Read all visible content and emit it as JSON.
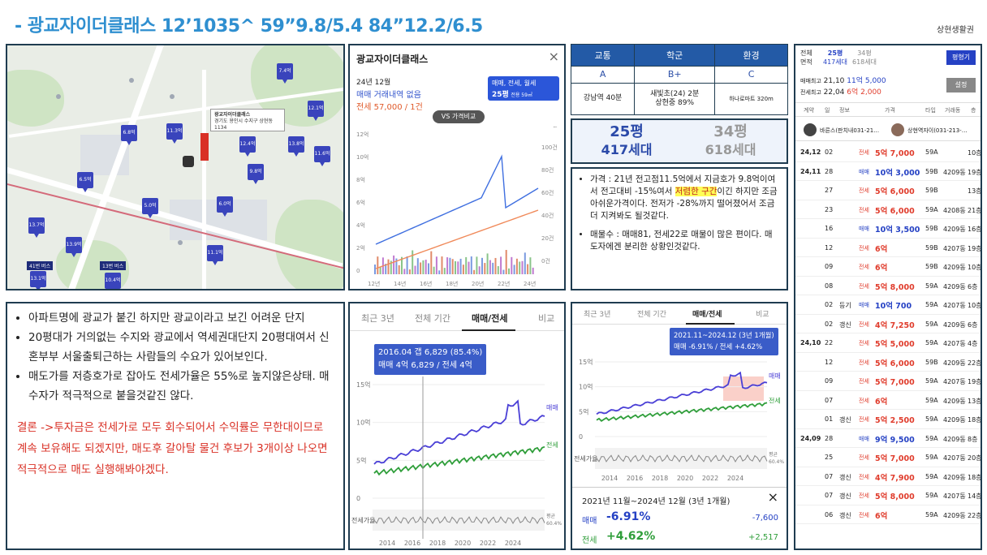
{
  "header": {
    "title": "- 광교자이더클래스 12’1035^ 59”9.8/5.4 84”12.2/6.5",
    "corner_label": "상현생활권"
  },
  "map": {
    "popup_line1": "광교자이더클래스",
    "popup_line2": "경기도 용인시 수지구 상현동 1134",
    "bus_labels": [
      "41번 버스",
      "13번 버스"
    ],
    "markers": [
      "7.4억",
      "12.1억",
      "6.8억",
      "11.3억",
      "12.4억",
      "13.8억",
      "11.6억",
      "9.8억",
      "5.0억",
      "6.5억",
      "13.7억",
      "13.9억",
      "11.1억",
      "13.1억",
      "10.4억",
      "6.0억"
    ]
  },
  "naver": {
    "title": "광교자이더클래스",
    "date": "24년 12월",
    "trade_status": "매매 거래내역 없음",
    "jeonse": "전세 57,000 / 1건",
    "filter_line1": "매매, 전세, 월세",
    "filter_line2": "25평",
    "filter_line3": "전용 59㎡",
    "vs_button": "VS 가격비교",
    "y_ticks": [
      "12억",
      "10억",
      "8억",
      "6억",
      "4억",
      "2억",
      "0"
    ],
    "y2_ticks": [
      "120건",
      "100건",
      "80건",
      "60건",
      "40건",
      "20건",
      "0건"
    ],
    "x_ticks": [
      "12년",
      "14년",
      "16년",
      "18년",
      "20년",
      "22년",
      "24년"
    ]
  },
  "info_table": {
    "headers": [
      "교통",
      "학군",
      "환경"
    ],
    "grades": [
      "A",
      "B+",
      "C"
    ],
    "transport": "강남역 40분",
    "school_line1": "새빛초(24) 2분",
    "school_line2": "상현중 89%",
    "environment": "하나로마트 320m"
  },
  "pyung": {
    "left_size": "25평",
    "left_units": "417세대",
    "right_size": "34평",
    "right_units": "618세대"
  },
  "analysis": {
    "price_prefix": "가격 : 21년 전고점11.5억에서 지금호가 9.8억이여서 전고대비 -15%여서 ",
    "price_highlight": "저렴한 구간",
    "price_suffix": "이긴 하지만 조금 아쉬운가격이다. 전저가 -28%까지 떨어졌어서 조금 더 지켜봐도 될것같다.",
    "listings": "매물수 : 매매81, 전세22로 매물이 많은 편이다. 매도자에겐 분리한 상황인것같다."
  },
  "summary": {
    "bullet1": "아파트명에 광교가 붙긴 하지만 광교이라고 보긴 어려운 단지",
    "bullet2": "20평대가 거의없는 수지와 광교에서 역세권대단지 20평대여서 신혼부부 서울출퇴근하는 사람들의 수요가 있어보인다.",
    "bullet3": "매도가를 저층호가로 잡아도 전세가율은 55%로 높지않은상태. 매수자가 적극적으로 붙을것같진 않다.",
    "conclusion": "결론 ->투자금은 전세가로 모두 회수되어서 수익률은 무한대이므로 계속 보유해도 되겠지만, 매도후 갈아탈 물건 후보가 3개이상 나오면 적극적으로 매도 실행해봐야겠다."
  },
  "chart1": {
    "tabs": [
      "최근 3년",
      "전체 기간",
      "매매/전세",
      "비교"
    ],
    "tooltip_line1": "2016.04 갭 6,829 (85.4%)",
    "tooltip_line2": "매매 4억 6,829 / 전세 4억",
    "y_ticks": [
      "15억",
      "10억",
      "5억",
      "0"
    ],
    "ratio_label": "전세가율",
    "ratio_right_1": "평균",
    "ratio_right_2": "60.4%",
    "series_labels": [
      "매매",
      "전세"
    ],
    "x_ticks": [
      "2014",
      "2016",
      "2018",
      "2020",
      "2022",
      "2024"
    ]
  },
  "chart2": {
    "tabs": [
      "최근 3년",
      "전체 기간",
      "매매/전세",
      "비교"
    ],
    "tooltip_line1": "2021.11~2024.12 (3년 1개월)",
    "tooltip_line2": "매매 -6.91% / 전세 +4.62%",
    "y_ticks": [
      "15억",
      "10억",
      "5억",
      "0"
    ],
    "ratio_label": "전세가율",
    "ratio_right_1": "평균",
    "ratio_right_2": "60.4%",
    "series_labels": [
      "매매",
      "전세"
    ],
    "x_ticks": [
      "2014",
      "2016",
      "2018",
      "2020",
      "2022",
      "2024"
    ],
    "footer_period": "2021년 11월~2024년 12월 (3년 1개월)",
    "sale_label": "매매",
    "sale_pct": "-6.91%",
    "sale_diff": "-7,600",
    "rent_label": "전세",
    "rent_pct": "+4.62%",
    "rent_diff": "+2,517"
  },
  "listing": {
    "head_label1": "전체",
    "head_label2": "면적",
    "tab1_size": "25평",
    "tab1_units": "417세대",
    "tab2_size": "34평",
    "tab2_units": "618세대",
    "compare_btn": "평형기",
    "max_sale_label": "매매최고",
    "max_sale_date": "21,10",
    "max_sale_price": "11억 5,000",
    "max_rent_label": "전세최고",
    "max_rent_date": "22,04",
    "max_rent_price": "6억 2,000",
    "settings_btn": "설정",
    "columns": [
      "계약",
      "일",
      "정보",
      "가격",
      "타입",
      "거래동",
      "층"
    ],
    "agent1": "바른스(판치내031-21…",
    "agent2": "상현역자이(031-213-…",
    "rows": [
      {
        "ym": "24,12",
        "d": "02",
        "info": "",
        "kind": "전세",
        "price": "5억 7,000",
        "type": "59A",
        "bldg": "",
        "floor": "10층"
      },
      {
        "ym": "24,11",
        "d": "28",
        "info": "",
        "kind": "매매",
        "price": "10억 3,000",
        "type": "59B",
        "bldg": "4209동",
        "floor": "19층"
      },
      {
        "ym": "",
        "d": "27",
        "info": "",
        "kind": "전세",
        "price": "5억 6,000",
        "type": "59B",
        "bldg": "",
        "floor": "13층"
      },
      {
        "ym": "",
        "d": "23",
        "info": "",
        "kind": "전세",
        "price": "5억 6,000",
        "type": "59A",
        "bldg": "4208동",
        "floor": "21층"
      },
      {
        "ym": "",
        "d": "16",
        "info": "",
        "kind": "매매",
        "price": "10억 3,500",
        "type": "59B",
        "bldg": "4209동",
        "floor": "16층"
      },
      {
        "ym": "",
        "d": "12",
        "info": "",
        "kind": "전세",
        "price": "6억",
        "type": "59B",
        "bldg": "4207동",
        "floor": "19층"
      },
      {
        "ym": "",
        "d": "09",
        "info": "",
        "kind": "전세",
        "price": "6억",
        "type": "59B",
        "bldg": "4209동",
        "floor": "10층"
      },
      {
        "ym": "",
        "d": "08",
        "info": "",
        "kind": "전세",
        "price": "5억 8,000",
        "type": "59A",
        "bldg": "4209동",
        "floor": "6층"
      },
      {
        "ym": "",
        "d": "02",
        "info": "등기",
        "kind": "매매",
        "price": "10억 700",
        "type": "59A",
        "bldg": "4207동",
        "floor": "10층"
      },
      {
        "ym": "",
        "d": "02",
        "info": "갱신",
        "kind": "전세",
        "price": "4억 7,250",
        "type": "59A",
        "bldg": "4209동",
        "floor": "6층"
      },
      {
        "ym": "24,10",
        "d": "22",
        "info": "",
        "kind": "전세",
        "price": "5억 5,000",
        "type": "59A",
        "bldg": "4207동",
        "floor": "4층"
      },
      {
        "ym": "",
        "d": "12",
        "info": "",
        "kind": "전세",
        "price": "5억 6,000",
        "type": "59B",
        "bldg": "4209동",
        "floor": "22층"
      },
      {
        "ym": "",
        "d": "09",
        "info": "",
        "kind": "전세",
        "price": "5억 7,000",
        "type": "59A",
        "bldg": "4207동",
        "floor": "19층"
      },
      {
        "ym": "",
        "d": "07",
        "info": "",
        "kind": "전세",
        "price": "6억",
        "type": "59A",
        "bldg": "4209동",
        "floor": "13층"
      },
      {
        "ym": "",
        "d": "01",
        "info": "갱신",
        "kind": "전세",
        "price": "5억 2,500",
        "type": "59A",
        "bldg": "4209동",
        "floor": "18층"
      },
      {
        "ym": "24,09",
        "d": "28",
        "info": "",
        "kind": "매매",
        "price": "9억 9,500",
        "type": "59A",
        "bldg": "4209동",
        "floor": "8층"
      },
      {
        "ym": "",
        "d": "25",
        "info": "",
        "kind": "전세",
        "price": "5억 7,000",
        "type": "59A",
        "bldg": "4207동",
        "floor": "20층"
      },
      {
        "ym": "",
        "d": "07",
        "info": "갱신",
        "kind": "전세",
        "price": "4억 7,900",
        "type": "59A",
        "bldg": "4209동",
        "floor": "18층"
      },
      {
        "ym": "",
        "d": "07",
        "info": "갱신",
        "kind": "전세",
        "price": "5억 8,000",
        "type": "59A",
        "bldg": "4207동",
        "floor": "14층"
      },
      {
        "ym": "",
        "d": "06",
        "info": "갱신",
        "kind": "전세",
        "price": "6억",
        "type": "59A",
        "bldg": "4209동",
        "floor": "22층"
      }
    ]
  },
  "colors": {
    "title": "#2f8fd0",
    "panel_border": "#1f3c50",
    "sale": "#2541c4",
    "rent": "#e03c2c",
    "sale_line": "#4a3fd6",
    "rent_line": "#2f9e3a",
    "table_header": "#235aa6"
  }
}
